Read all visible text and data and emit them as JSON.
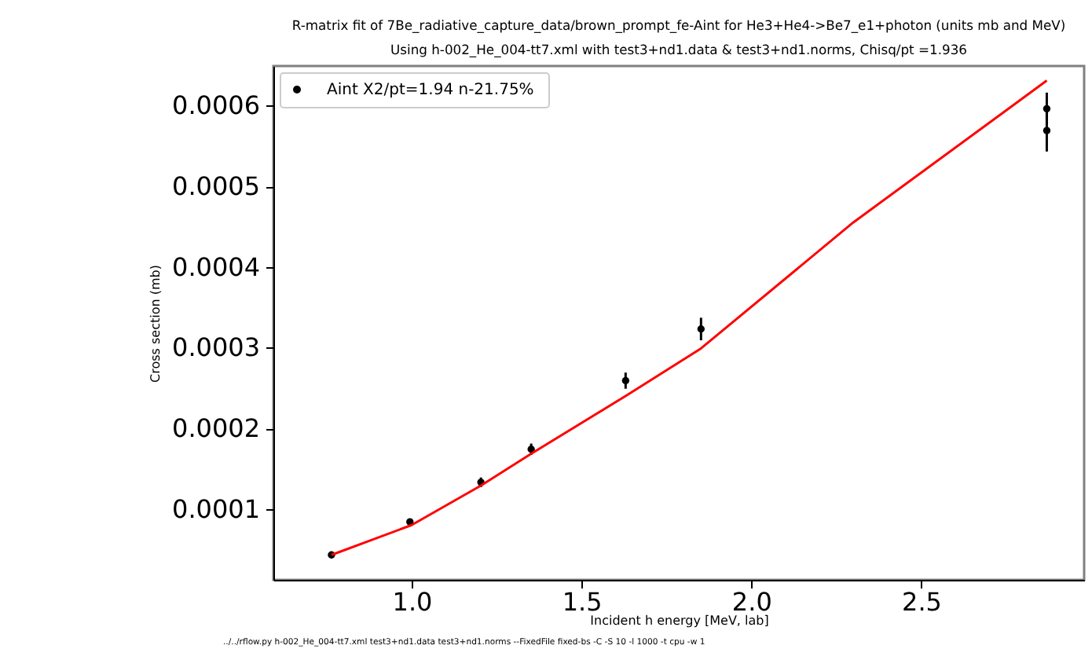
{
  "chart_data": {
    "type": "scatter",
    "title": "R-matrix fit of 7Be_radiative_capture_data/brown_prompt_fe-Aint for He3+He4->Be7_e1+photon (units mb and MeV)",
    "subtitle": "Using h-002_He_004-tt7.xml with  test3+nd1.data & test3+nd1.norms, Chisq/pt =1.936",
    "xlabel": "Incident h energy [MeV, lab]",
    "ylabel": "Cross section (mb)",
    "annotations": [
      "../../rflow.py h-002_He_004-tt7.xml test3+nd1.data test3+nd1.norms --FixedFile fixed-bs -C -S 10 -l 1000 -t cpu -w 1"
    ],
    "series": [
      {
        "name": "Aint  X2/pt=1.94 n-21.75%",
        "color": "#000000",
        "marker": "circle",
        "x": [
          0.764,
          0.995,
          1.204,
          1.352,
          1.63,
          1.852,
          2.87,
          2.87
        ],
        "values": [
          4.3e-05,
          8.4e-05,
          0.000133,
          0.000174,
          0.000259,
          0.000323,
          0.000596,
          0.000569
        ],
        "errors": [
          2e-06,
          3e-06,
          6e-06,
          7e-06,
          1e-05,
          1.4e-05,
          2e-05,
          2.6e-05
        ]
      },
      {
        "type": "line",
        "color": "#ff0000",
        "line_style": "solid",
        "x": [
          0.764,
          1.0,
          1.204,
          1.35,
          1.63,
          1.852,
          2.3,
          2.87
        ],
        "values": [
          4.3e-05,
          8e-05,
          0.000129,
          0.000168,
          0.00024,
          0.000299,
          0.000455,
          0.000631
        ]
      }
    ],
    "xlim": [
      0.593,
      2.98
    ],
    "ylim": [
      1.21e-05,
      0.000649
    ],
    "xticks": [
      {
        "value": 1,
        "label": "1.0"
      },
      {
        "value": 1.5,
        "label": "1.5"
      },
      {
        "value": 2,
        "label": "2.0"
      },
      {
        "value": 2.5,
        "label": "2.5"
      }
    ],
    "yticks": [
      0.0001,
      0.0002,
      0.0003,
      0.0004,
      0.0005,
      0.0006
    ],
    "grid": false,
    "legend": "top left"
  }
}
